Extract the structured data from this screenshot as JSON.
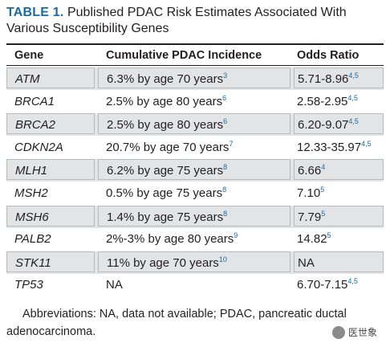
{
  "title": {
    "label": "TABLE 1.",
    "text": "Published PDAC Risk Estimates Associated With Various Susceptibility Genes"
  },
  "columns": [
    "Gene",
    "Cumulative PDAC Incidence",
    "Odds Ratio"
  ],
  "rows": [
    {
      "gene": "ATM",
      "incidence": "6.3% by age 70 years",
      "inc_ref": "3",
      "odds": "5.71-8.96",
      "odds_ref": "4,5"
    },
    {
      "gene": "BRCA1",
      "incidence": "2.5% by age 80 years",
      "inc_ref": "6",
      "odds": "2.58-2.95",
      "odds_ref": "4,5"
    },
    {
      "gene": "BRCA2",
      "incidence": "2.5% by age 80 years",
      "inc_ref": "6",
      "odds": "6.20-9.07",
      "odds_ref": "4,5"
    },
    {
      "gene": "CDKN2A",
      "incidence": "20.7% by age 70 years",
      "inc_ref": "7",
      "odds": "12.33-35.97",
      "odds_ref": "4,5"
    },
    {
      "gene": "MLH1",
      "incidence": "6.2% by age 75 years",
      "inc_ref": "8",
      "odds": "6.66",
      "odds_ref": "4"
    },
    {
      "gene": "MSH2",
      "incidence": "0.5% by age 75 years",
      "inc_ref": "8",
      "odds": "7.10",
      "odds_ref": "5"
    },
    {
      "gene": "MSH6",
      "incidence": "1.4% by age 75 years",
      "inc_ref": "8",
      "odds": "7.79",
      "odds_ref": "5"
    },
    {
      "gene": "PALB2",
      "incidence": "2%-3% by age 80 years",
      "inc_ref": "9",
      "odds": "14.82",
      "odds_ref": "5"
    },
    {
      "gene": "STK11",
      "incidence": "11% by age 70 years",
      "inc_ref": "10",
      "odds": "NA",
      "odds_ref": ""
    },
    {
      "gene": "TP53",
      "incidence": "NA",
      "inc_ref": "",
      "odds": "6.70-7.15",
      "odds_ref": "4,5"
    }
  ],
  "footnote": "Abbreviations: NA, data not available; PDAC, pancreatic ductal adenocarcinoma.",
  "watermark": "医世象",
  "colors": {
    "accent": "#1a6aa8",
    "shade": "#e3e4e6"
  }
}
